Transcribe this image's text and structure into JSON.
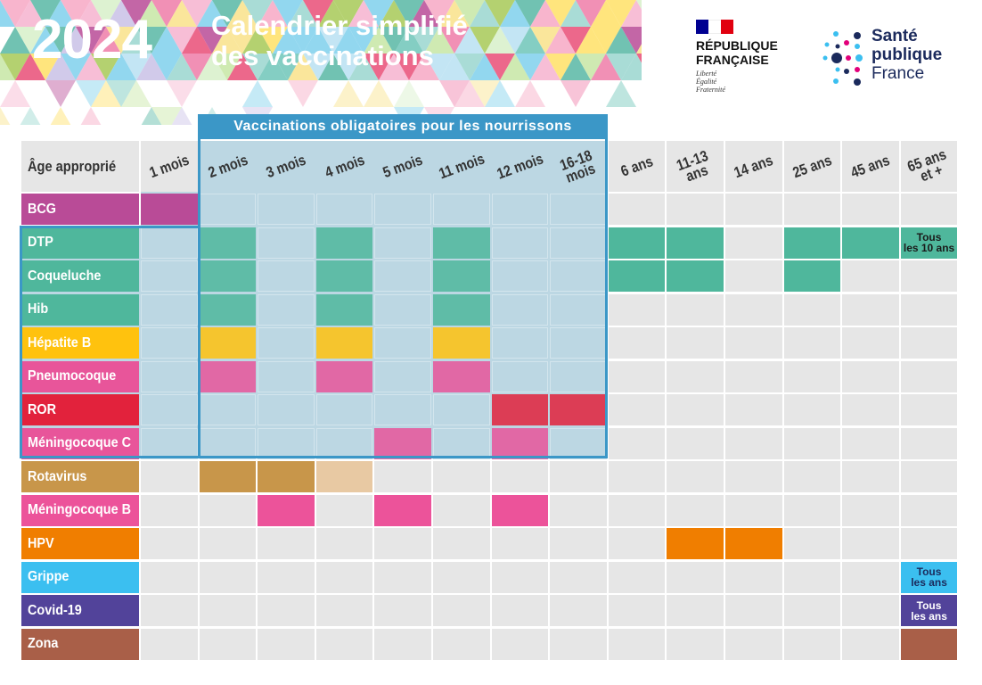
{
  "header": {
    "year": "2024",
    "title_line1": "Calendrier simplifié",
    "title_line2": "des vaccinations"
  },
  "republique": {
    "name_line1": "RÉPUBLIQUE",
    "name_line2": "FRANÇAISE",
    "motto": [
      "Liberté",
      "Égalité",
      "Fraternité"
    ]
  },
  "sante": {
    "line1": "Santé",
    "line2": "publique",
    "line3": "France"
  },
  "mandatory_title": "Vaccinations obligatoires pour les nourrissons",
  "table": {
    "header_label": "Âge approprié",
    "ages": [
      "1 mois",
      "2 mois",
      "3 mois",
      "4 mois",
      "5 mois",
      "11 mois",
      "12 mois",
      "16-18\nmois",
      "6 ans",
      "11-13\nans",
      "14 ans",
      "25 ans",
      "45 ans",
      "65 ans\net +"
    ],
    "rows": [
      {
        "name": "BCG",
        "color": "#b94b97",
        "cells": [
          1,
          0,
          0,
          0,
          0,
          0,
          0,
          0,
          0,
          0,
          0,
          0,
          0,
          0
        ],
        "note": null
      },
      {
        "name": "DTP",
        "color": "#4fb79c",
        "cells": [
          0,
          1,
          0,
          1,
          0,
          1,
          0,
          0,
          1,
          1,
          0,
          1,
          1,
          0
        ],
        "note": "Tous\nles 10 ans"
      },
      {
        "name": "Coqueluche",
        "color": "#4fb79c",
        "cells": [
          0,
          1,
          0,
          1,
          0,
          1,
          0,
          0,
          1,
          1,
          0,
          1,
          0,
          0
        ],
        "note": null
      },
      {
        "name": "Hib",
        "color": "#4fb79c",
        "cells": [
          0,
          1,
          0,
          1,
          0,
          1,
          0,
          0,
          0,
          0,
          0,
          0,
          0,
          0
        ],
        "note": null
      },
      {
        "name": "Hépatite B",
        "color": "#ffc20e",
        "cells": [
          0,
          1,
          0,
          1,
          0,
          1,
          0,
          0,
          0,
          0,
          0,
          0,
          0,
          0
        ],
        "note": null
      },
      {
        "name": "Pneumocoque",
        "color": "#e8559a",
        "cells": [
          0,
          1,
          0,
          1,
          0,
          1,
          0,
          0,
          0,
          0,
          0,
          0,
          0,
          0
        ],
        "note": null
      },
      {
        "name": "ROR",
        "color": "#e2223c",
        "cells": [
          0,
          0,
          0,
          0,
          0,
          0,
          1,
          1,
          0,
          0,
          0,
          0,
          0,
          0
        ],
        "note": null
      },
      {
        "name": "Méningocoque C",
        "color": "#e8559a",
        "cells": [
          0,
          0,
          0,
          0,
          1,
          0,
          1,
          0,
          0,
          0,
          0,
          0,
          0,
          0
        ],
        "note": null
      },
      {
        "name": "Rotavirus",
        "color": "#c8964a",
        "cells": [
          0,
          1,
          1,
          2,
          0,
          0,
          0,
          0,
          0,
          0,
          0,
          0,
          0,
          0
        ],
        "note": null
      },
      {
        "name": "Méningocoque B",
        "color": "#ec539a",
        "cells": [
          0,
          0,
          1,
          0,
          1,
          0,
          1,
          0,
          0,
          0,
          0,
          0,
          0,
          0
        ],
        "note": null
      },
      {
        "name": "HPV",
        "color": "#f07e00",
        "cells": [
          0,
          0,
          0,
          0,
          0,
          0,
          0,
          0,
          0,
          1,
          1,
          0,
          0,
          0
        ],
        "note": null
      },
      {
        "name": "Grippe",
        "color": "#3bbff0",
        "cells": [
          0,
          0,
          0,
          0,
          0,
          0,
          0,
          0,
          0,
          0,
          0,
          0,
          0,
          0
        ],
        "note": "Tous\nles ans"
      },
      {
        "name": "Covid-19",
        "color": "#52439a",
        "cells": [
          0,
          0,
          0,
          0,
          0,
          0,
          0,
          0,
          0,
          0,
          0,
          0,
          0,
          0
        ],
        "note": "Tous\nles ans"
      },
      {
        "name": "Zona",
        "color": "#a95f48",
        "cells": [
          0,
          0,
          0,
          0,
          0,
          0,
          0,
          0,
          0,
          0,
          0,
          0,
          0,
          1
        ],
        "note": null
      }
    ]
  },
  "colors": {
    "empty_cell": "#e6e6e6",
    "mandatory_zone": "#bcd7e3",
    "mandatory_border": "#3b97c7",
    "brand_navy": "#1b2a5c"
  }
}
